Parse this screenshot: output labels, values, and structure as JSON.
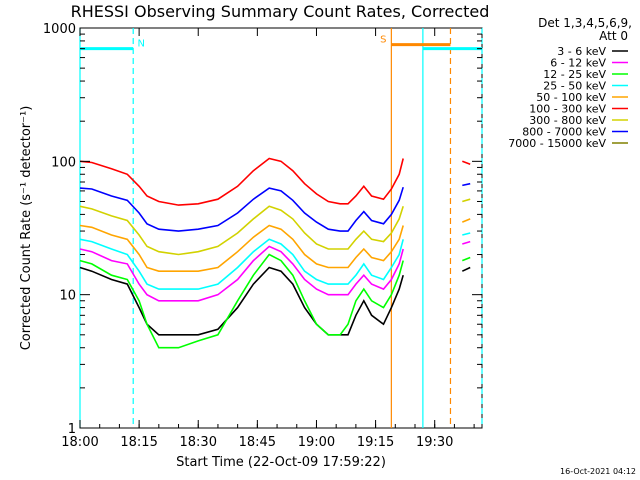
{
  "chart_data": {
    "type": "line",
    "title": "RHESSI Observing Summary Count Rates, Corrected",
    "xlabel": "Start Time (22-Oct-09 17:59:22)",
    "ylabel": "Corrected Count Rate (s⁻¹ detector⁻¹)",
    "y_scale": "log",
    "ylim": [
      1,
      1000
    ],
    "xlim_min": [
      0,
      102
    ],
    "x_ticks": [
      {
        "min": 0,
        "label": "18:00"
      },
      {
        "min": 15,
        "label": "18:15"
      },
      {
        "min": 30,
        "label": "18:30"
      },
      {
        "min": 45,
        "label": "18:45"
      },
      {
        "min": 60,
        "label": "19:00"
      },
      {
        "min": 75,
        "label": "19:15"
      },
      {
        "min": 90,
        "label": "19:30"
      }
    ],
    "y_ticks": [
      {
        "value": 1,
        "label": "1"
      },
      {
        "value": 10,
        "label": "10"
      },
      {
        "value": 100,
        "label": "100"
      },
      {
        "value": 1000,
        "label": "1000"
      }
    ],
    "legend": {
      "header": [
        "Det 1,3,4,5,6,9,",
        "Att 0"
      ],
      "placement": "right"
    },
    "series": [
      {
        "name": "3 - 6 keV",
        "color": "#000000",
        "points": [
          [
            0,
            16
          ],
          [
            3,
            15
          ],
          [
            8,
            13
          ],
          [
            12,
            12
          ],
          [
            15,
            8
          ],
          [
            17,
            6
          ],
          [
            20,
            5
          ],
          [
            25,
            5
          ],
          [
            30,
            5
          ],
          [
            35,
            5.5
          ],
          [
            40,
            8
          ],
          [
            44,
            12
          ],
          [
            48,
            16
          ],
          [
            51,
            15
          ],
          [
            54,
            12
          ],
          [
            57,
            8
          ],
          [
            60,
            6
          ],
          [
            63,
            5
          ],
          [
            66,
            5
          ],
          [
            68,
            5
          ],
          [
            70,
            7
          ],
          [
            72,
            9
          ],
          [
            74,
            7
          ],
          [
            77,
            6
          ],
          [
            79,
            8
          ],
          [
            81,
            11
          ],
          [
            82,
            14
          ]
        ],
        "tail": [
          [
            97,
            15
          ],
          [
            99,
            16
          ]
        ]
      },
      {
        "name": "6 - 12 keV",
        "color": "#ff00ff",
        "points": [
          [
            0,
            22
          ],
          [
            3,
            21
          ],
          [
            8,
            18
          ],
          [
            12,
            17
          ],
          [
            15,
            12
          ],
          [
            17,
            10
          ],
          [
            20,
            9
          ],
          [
            25,
            9
          ],
          [
            30,
            9
          ],
          [
            35,
            10
          ],
          [
            40,
            13
          ],
          [
            44,
            18
          ],
          [
            48,
            23
          ],
          [
            51,
            21
          ],
          [
            54,
            17
          ],
          [
            57,
            13
          ],
          [
            60,
            11
          ],
          [
            63,
            10
          ],
          [
            66,
            10
          ],
          [
            68,
            10
          ],
          [
            70,
            12
          ],
          [
            72,
            14
          ],
          [
            74,
            12
          ],
          [
            77,
            11
          ],
          [
            79,
            13
          ],
          [
            81,
            17
          ],
          [
            82,
            22
          ]
        ],
        "tail": [
          [
            97,
            24
          ],
          [
            99,
            25
          ]
        ]
      },
      {
        "name": "12 - 25 keV",
        "color": "#00ff00",
        "points": [
          [
            0,
            18
          ],
          [
            3,
            17
          ],
          [
            8,
            14
          ],
          [
            12,
            13
          ],
          [
            15,
            9
          ],
          [
            17,
            6
          ],
          [
            20,
            4
          ],
          [
            25,
            4
          ],
          [
            30,
            4.5
          ],
          [
            35,
            5
          ],
          [
            40,
            9
          ],
          [
            44,
            14
          ],
          [
            48,
            20
          ],
          [
            51,
            18
          ],
          [
            54,
            14
          ],
          [
            57,
            9
          ],
          [
            60,
            6
          ],
          [
            63,
            5
          ],
          [
            66,
            5
          ],
          [
            68,
            6
          ],
          [
            70,
            9
          ],
          [
            72,
            11
          ],
          [
            74,
            9
          ],
          [
            77,
            8
          ],
          [
            79,
            10
          ],
          [
            81,
            14
          ],
          [
            82,
            18
          ]
        ],
        "tail": [
          [
            97,
            18
          ],
          [
            99,
            19
          ]
        ]
      },
      {
        "name": "25 - 50 keV",
        "color": "#00ffff",
        "points": [
          [
            0,
            26
          ],
          [
            3,
            25
          ],
          [
            8,
            22
          ],
          [
            12,
            20
          ],
          [
            15,
            15
          ],
          [
            17,
            12
          ],
          [
            20,
            11
          ],
          [
            25,
            11
          ],
          [
            30,
            11
          ],
          [
            35,
            12
          ],
          [
            40,
            16
          ],
          [
            44,
            21
          ],
          [
            48,
            26
          ],
          [
            51,
            24
          ],
          [
            54,
            20
          ],
          [
            57,
            15
          ],
          [
            60,
            13
          ],
          [
            63,
            12
          ],
          [
            66,
            12
          ],
          [
            68,
            12
          ],
          [
            70,
            14
          ],
          [
            72,
            17
          ],
          [
            74,
            14
          ],
          [
            77,
            13
          ],
          [
            79,
            16
          ],
          [
            81,
            20
          ],
          [
            82,
            26
          ]
        ],
        "tail": [
          [
            97,
            28
          ],
          [
            99,
            29
          ]
        ]
      },
      {
        "name": "50 - 100 keV",
        "color": "#ffa500",
        "points": [
          [
            0,
            33
          ],
          [
            3,
            32
          ],
          [
            8,
            28
          ],
          [
            12,
            26
          ],
          [
            15,
            20
          ],
          [
            17,
            16
          ],
          [
            20,
            15
          ],
          [
            25,
            15
          ],
          [
            30,
            15
          ],
          [
            35,
            16
          ],
          [
            40,
            21
          ],
          [
            44,
            27
          ],
          [
            48,
            33
          ],
          [
            51,
            31
          ],
          [
            54,
            26
          ],
          [
            57,
            20
          ],
          [
            60,
            17
          ],
          [
            63,
            16
          ],
          [
            66,
            16
          ],
          [
            68,
            16
          ],
          [
            70,
            19
          ],
          [
            72,
            22
          ],
          [
            74,
            19
          ],
          [
            77,
            18
          ],
          [
            79,
            21
          ],
          [
            81,
            26
          ],
          [
            82,
            33
          ]
        ],
        "tail": [
          [
            97,
            35
          ],
          [
            99,
            37
          ]
        ]
      },
      {
        "name": "100 - 300 keV",
        "color": "#ff0000",
        "points": [
          [
            0,
            100
          ],
          [
            3,
            98
          ],
          [
            8,
            88
          ],
          [
            12,
            80
          ],
          [
            15,
            65
          ],
          [
            17,
            55
          ],
          [
            20,
            50
          ],
          [
            25,
            47
          ],
          [
            30,
            48
          ],
          [
            35,
            52
          ],
          [
            40,
            65
          ],
          [
            44,
            85
          ],
          [
            48,
            105
          ],
          [
            51,
            100
          ],
          [
            54,
            85
          ],
          [
            57,
            68
          ],
          [
            60,
            57
          ],
          [
            63,
            50
          ],
          [
            66,
            48
          ],
          [
            68,
            48
          ],
          [
            70,
            55
          ],
          [
            72,
            65
          ],
          [
            74,
            55
          ],
          [
            77,
            52
          ],
          [
            79,
            62
          ],
          [
            81,
            80
          ],
          [
            82,
            105
          ]
        ],
        "tail": [
          [
            97,
            100
          ],
          [
            99,
            95
          ]
        ]
      },
      {
        "name": "300 - 800 keV",
        "color": "#d2d200",
        "points": [
          [
            0,
            46
          ],
          [
            3,
            44
          ],
          [
            8,
            39
          ],
          [
            12,
            36
          ],
          [
            15,
            28
          ],
          [
            17,
            23
          ],
          [
            20,
            21
          ],
          [
            25,
            20
          ],
          [
            30,
            21
          ],
          [
            35,
            23
          ],
          [
            40,
            29
          ],
          [
            44,
            37
          ],
          [
            48,
            46
          ],
          [
            51,
            43
          ],
          [
            54,
            37
          ],
          [
            57,
            29
          ],
          [
            60,
            24
          ],
          [
            63,
            22
          ],
          [
            66,
            22
          ],
          [
            68,
            22
          ],
          [
            70,
            26
          ],
          [
            72,
            30
          ],
          [
            74,
            26
          ],
          [
            77,
            25
          ],
          [
            79,
            29
          ],
          [
            81,
            37
          ],
          [
            82,
            46
          ]
        ],
        "tail": [
          [
            97,
            50
          ],
          [
            99,
            52
          ]
        ]
      },
      {
        "name": "800 - 7000 keV",
        "color": "#0000ff",
        "points": [
          [
            0,
            63
          ],
          [
            3,
            62
          ],
          [
            8,
            55
          ],
          [
            12,
            51
          ],
          [
            15,
            41
          ],
          [
            17,
            34
          ],
          [
            20,
            31
          ],
          [
            25,
            30
          ],
          [
            30,
            31
          ],
          [
            35,
            33
          ],
          [
            40,
            41
          ],
          [
            44,
            52
          ],
          [
            48,
            63
          ],
          [
            51,
            60
          ],
          [
            54,
            51
          ],
          [
            57,
            41
          ],
          [
            60,
            35
          ],
          [
            63,
            31
          ],
          [
            66,
            30
          ],
          [
            68,
            30
          ],
          [
            70,
            36
          ],
          [
            72,
            42
          ],
          [
            74,
            36
          ],
          [
            77,
            34
          ],
          [
            79,
            40
          ],
          [
            81,
            51
          ],
          [
            82,
            64
          ]
        ],
        "tail": [
          [
            97,
            66
          ],
          [
            99,
            68
          ]
        ]
      },
      {
        "name": "7000 - 15000 keV",
        "color": "#808000",
        "points": [],
        "tail": []
      }
    ],
    "annotations": [
      {
        "type": "flag",
        "label": "N",
        "color": "#00ffff",
        "y": 700,
        "segments": [
          [
            0,
            13.5
          ],
          [
            87,
            102
          ]
        ]
      },
      {
        "type": "flag",
        "label": "S",
        "color": "#ff8800",
        "y": 750,
        "segments": [
          [
            79,
            94
          ]
        ]
      }
    ],
    "vertical_lines": [
      {
        "min": 0,
        "color": "#00ffff",
        "style": "solid"
      },
      {
        "min": 13.5,
        "color": "#00ffff",
        "style": "dashed"
      },
      {
        "min": 79,
        "color": "#ff8800",
        "style": "solid"
      },
      {
        "min": 87,
        "color": "#00ffff",
        "style": "solid"
      },
      {
        "min": 94,
        "color": "#ff8800",
        "style": "dashed"
      },
      {
        "min": 102,
        "color": "#00ffff",
        "style": "dashed"
      }
    ],
    "grid": false
  },
  "footer_timestamp": "16-Oct-2021 04:12"
}
